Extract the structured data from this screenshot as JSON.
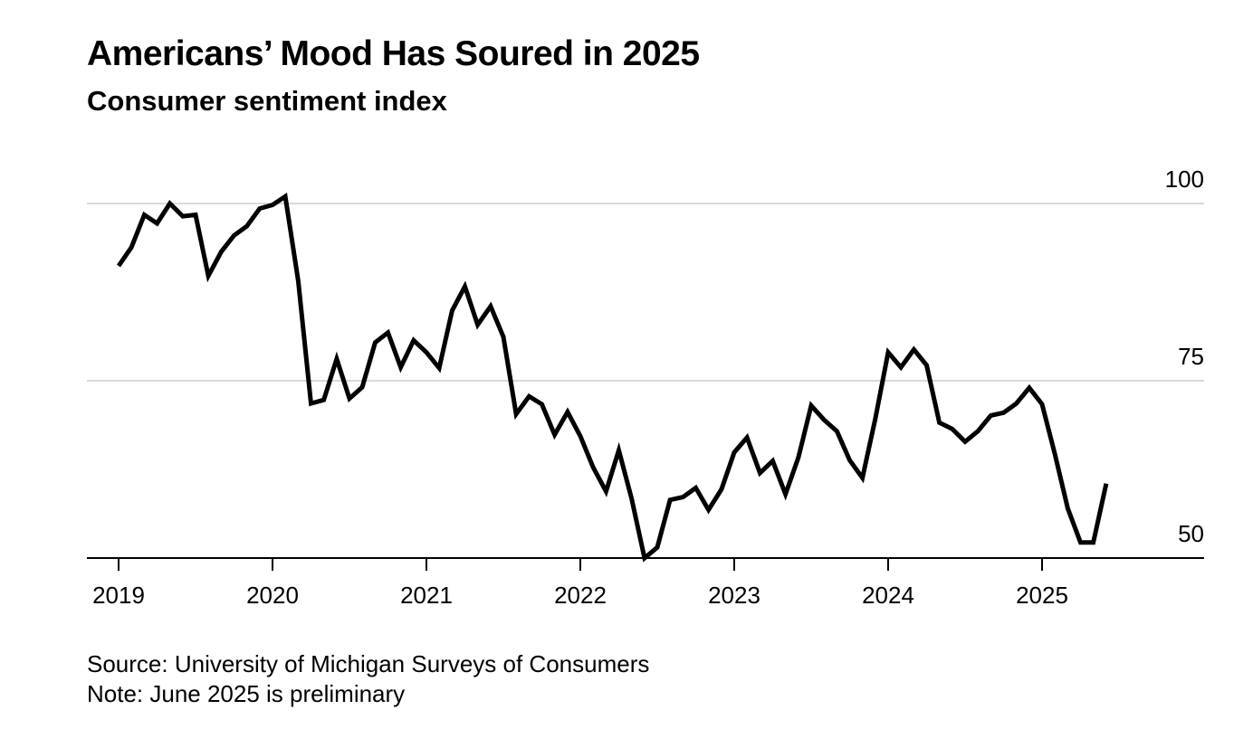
{
  "chart_data": {
    "type": "line",
    "title": "Americans’ Mood Has Soured in 2025",
    "subtitle": "Consumer sentiment index",
    "xlabel": "",
    "ylabel": "",
    "ylim": [
      50,
      102
    ],
    "yticks": [
      "100",
      "75",
      "50"
    ],
    "xticks": [
      "2019",
      "2020",
      "2021",
      "2022",
      "2023",
      "2024",
      "2025"
    ],
    "grid": true,
    "series": [
      {
        "name": "Consumer sentiment index",
        "color": "#000000",
        "x": [
          2019.0,
          2019.083,
          2019.167,
          2019.25,
          2019.333,
          2019.417,
          2019.5,
          2019.583,
          2019.667,
          2019.75,
          2019.833,
          2019.917,
          2020.0,
          2020.083,
          2020.167,
          2020.25,
          2020.333,
          2020.417,
          2020.5,
          2020.583,
          2020.667,
          2020.75,
          2020.833,
          2020.917,
          2021.0,
          2021.083,
          2021.167,
          2021.25,
          2021.333,
          2021.417,
          2021.5,
          2021.583,
          2021.667,
          2021.75,
          2021.833,
          2021.917,
          2022.0,
          2022.083,
          2022.167,
          2022.25,
          2022.333,
          2022.417,
          2022.5,
          2022.583,
          2022.667,
          2022.75,
          2022.833,
          2022.917,
          2023.0,
          2023.083,
          2023.167,
          2023.25,
          2023.333,
          2023.417,
          2023.5,
          2023.583,
          2023.667,
          2023.75,
          2023.833,
          2023.917,
          2024.0,
          2024.083,
          2024.167,
          2024.25,
          2024.333,
          2024.417,
          2024.5,
          2024.583,
          2024.667,
          2024.75,
          2024.833,
          2024.917,
          2025.0,
          2025.083,
          2025.167,
          2025.25,
          2025.333,
          2025.417
        ],
        "values": [
          91.2,
          93.8,
          98.4,
          97.2,
          100.0,
          98.2,
          98.4,
          89.8,
          93.2,
          95.5,
          96.8,
          99.3,
          99.8,
          101.0,
          89.1,
          71.8,
          72.3,
          78.1,
          72.5,
          74.1,
          80.4,
          81.8,
          76.9,
          80.7,
          79.0,
          76.8,
          84.9,
          88.3,
          82.9,
          85.5,
          81.2,
          70.3,
          72.8,
          71.7,
          67.4,
          70.6,
          67.2,
          62.8,
          59.4,
          65.2,
          58.4,
          50.0,
          51.5,
          58.2,
          58.6,
          59.9,
          56.8,
          59.7,
          64.9,
          67.0,
          62.0,
          63.7,
          59.0,
          64.2,
          71.5,
          69.5,
          67.9,
          63.8,
          61.3,
          69.7,
          79.0,
          76.9,
          79.4,
          77.2,
          69.1,
          68.2,
          66.4,
          67.9,
          70.1,
          70.5,
          71.8,
          74.0,
          71.7,
          64.7,
          57.0,
          52.2,
          52.2,
          60.5
        ]
      }
    ]
  },
  "footer": {
    "source": "Source: University of Michigan Surveys of Consumers",
    "note": "Note: June 2025 is preliminary"
  }
}
